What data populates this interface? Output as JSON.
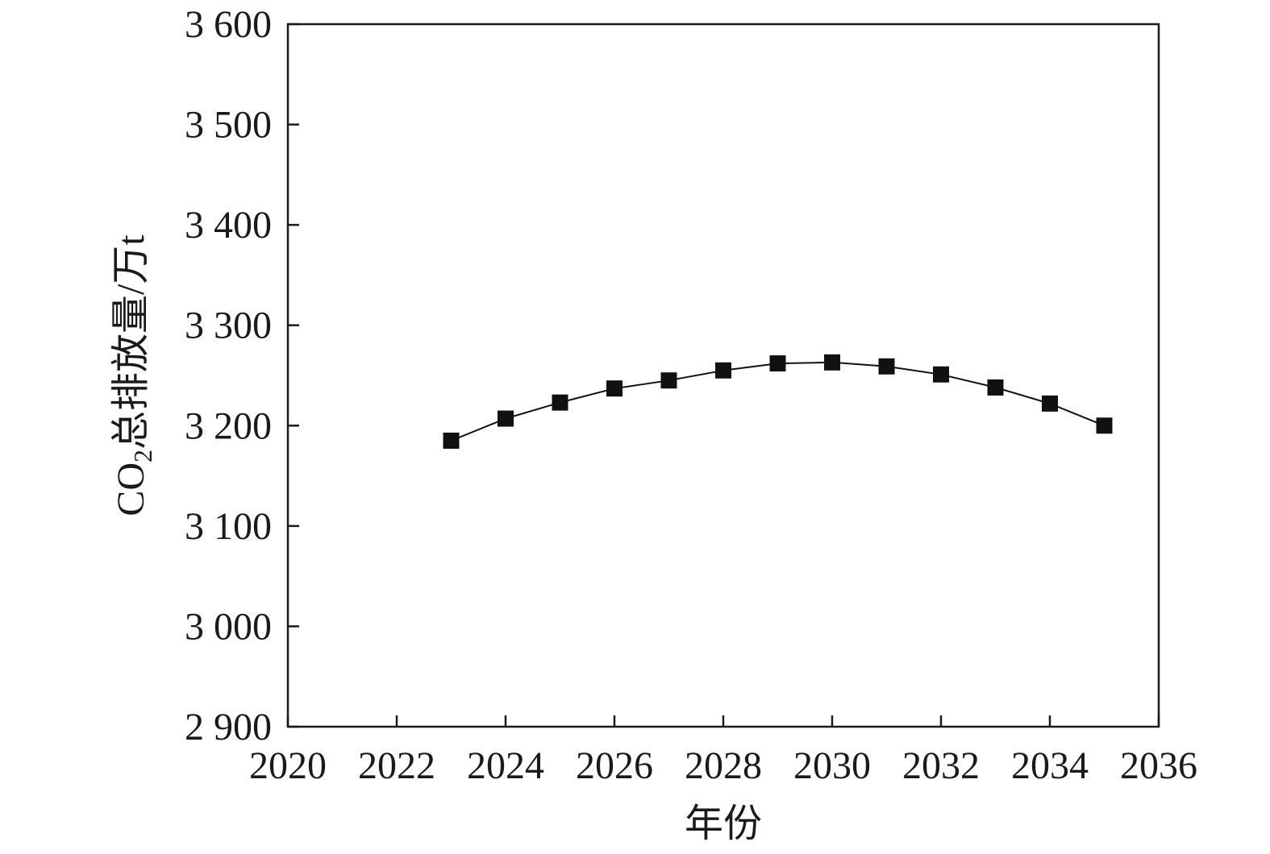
{
  "chart_data": {
    "type": "line",
    "title": "",
    "xlabel": "年份",
    "ylabel": {
      "prefix": "CO",
      "subscript": "2",
      "suffix": "总排放量/万t"
    },
    "xlim": [
      2020,
      2036
    ],
    "ylim": [
      2900,
      3600
    ],
    "xticks": [
      2020,
      2022,
      2024,
      2026,
      2028,
      2030,
      2032,
      2034,
      2036
    ],
    "xtick_labels": [
      "2020",
      "2022",
      "2024",
      "2026",
      "2028",
      "2030",
      "2032",
      "2034",
      "2036"
    ],
    "yticks": [
      2900,
      3000,
      3100,
      3200,
      3300,
      3400,
      3500,
      3600
    ],
    "ytick_labels": [
      "2 900",
      "3 000",
      "3 100",
      "3 200",
      "3 300",
      "3 400",
      "3 500",
      "3 600"
    ],
    "grid": false,
    "legend": "none",
    "series": [
      {
        "marker": "square",
        "color": "#111111",
        "x": [
          2023,
          2024,
          2025,
          2026,
          2027,
          2028,
          2029,
          2030,
          2031,
          2032,
          2033,
          2034,
          2035
        ],
        "y": [
          3185,
          3207,
          3223,
          3237,
          3245,
          3255,
          3262,
          3263,
          3259,
          3251,
          3238,
          3222,
          3200
        ]
      }
    ]
  }
}
